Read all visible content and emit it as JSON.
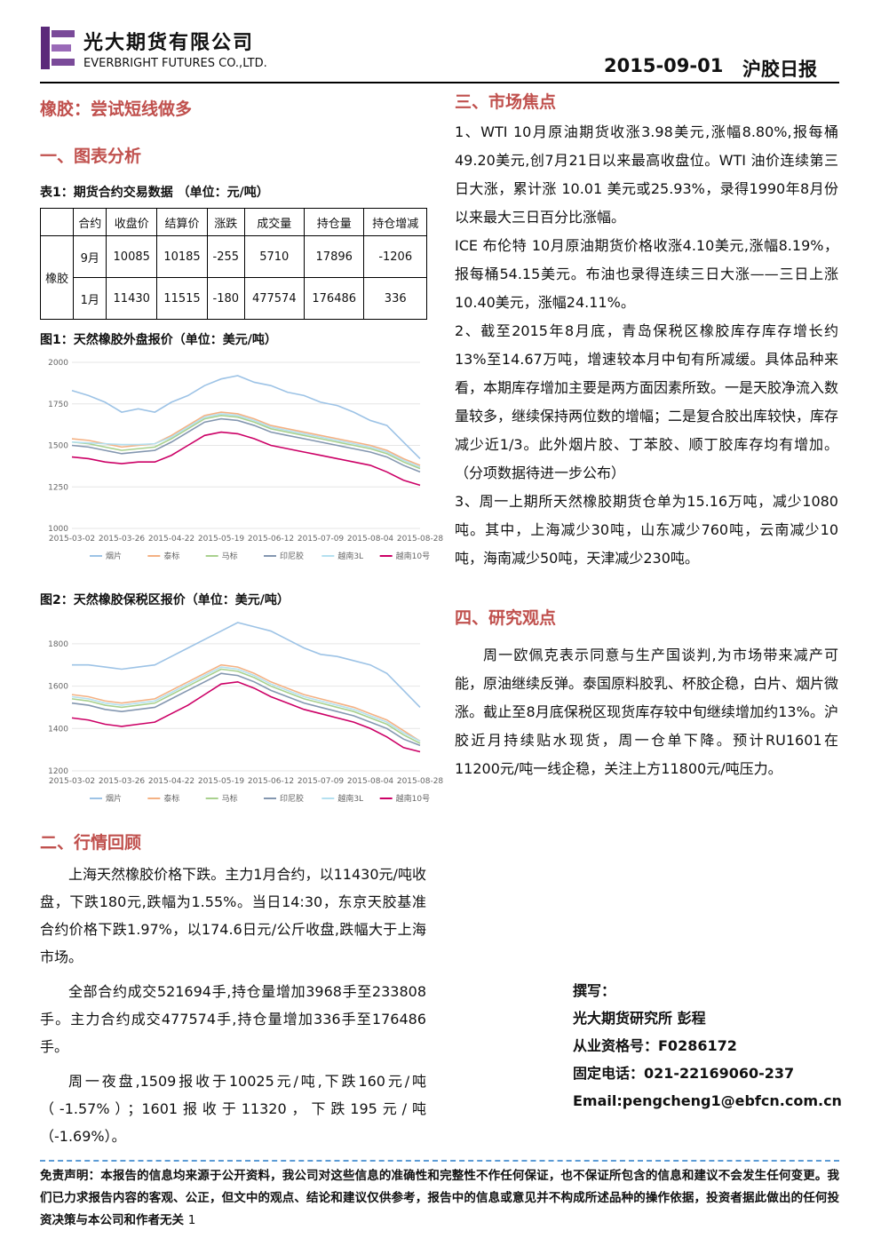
{
  "header": {
    "company_cn": "光大期货有限公司",
    "company_en": "EVERBRIGHT FUTURES CO.,LTD.",
    "date": "2015-09-01",
    "report_name": "沪胶日报"
  },
  "left": {
    "title": "橡胶：尝试短线做多",
    "section1": "一、图表分析",
    "table_caption": "表1：期货合约交易数据 （单位：元/吨）",
    "table": {
      "headers": [
        "合约",
        "收盘价",
        "结算价",
        "涨跌",
        "成交量",
        "持仓量",
        "持仓增减"
      ],
      "group": "橡胶",
      "rows": [
        [
          "9月",
          10085,
          10185,
          -255,
          5710,
          17896,
          -1206
        ],
        [
          "1月",
          11430,
          11515,
          -180,
          477574,
          176486,
          336
        ]
      ]
    },
    "fig1_caption": "图1：天然橡胶外盘报价（单位：美元/吨）",
    "fig2_caption": "图2：天然橡胶保税区报价（单位：美元/吨）",
    "section2": "二、行情回顾",
    "review": [
      "上海天然橡胶价格下跌。主力1月合约，以11430元/吨收盘，下跌180元,跌幅为1.55%。当日14:30，东京天胶基准合约价格下跌1.97%，以174.6日元/公斤收盘,跌幅大于上海市场。",
      "全部合约成交521694手,持仓量增加3968手至233808手。主力合约成交477574手,持仓量增加336手至176486手。",
      "周一夜盘,1509报收于10025元/吨,下跌160元/吨（-1.57%）；1601报收于11320，下跌195元/吨（-1.69%）。"
    ]
  },
  "right": {
    "section3": "三、市场焦点",
    "focus": [
      "1、WTI 10月原油期货收涨3.98美元,涨幅8.80%,报每桶49.20美元,创7月21日以来最高收盘位。WTI 油价连续第三日大涨，累计涨 10.01 美元或25.93%，录得1990年8月份以来最大三日百分比涨幅。",
      "ICE 布伦特 10月原油期货价格收涨4.10美元,涨幅8.19%，报每桶54.15美元。布油也录得连续三日大涨——三日上涨10.40美元，涨幅24.11%。",
      "2、截至2015年8月底，青岛保税区橡胶库存库存增长约13%至14.67万吨，增速较本月中旬有所减缓。具体品种来看，本期库存增加主要是两方面因素所致。一是天胶净流入数量较多，继续保持两位数的增幅；二是复合胶出库较快，库存减少近1/3。此外烟片胶、丁苯胶、顺丁胶库存均有增加。（分项数据待进一步公布）",
      "3、周一上期所天然橡胶期货仓单为15.16万吨，减少1080吨。其中，上海减少30吨，山东减少760吨，云南减少10吨，海南减少50吨，天津减少230吨。"
    ],
    "section4": "四、研究观点",
    "view": "周一欧佩克表示同意与生产国谈判,为市场带来减产可能，原油继续反弹。泰国原料胶乳、杯胶企稳，白片、烟片微涨。截止至8月底保税区现货库存较中旬继续增加约13%。沪胶近月持续贴水现货，周一仓单下降。预计RU1601在11200元/吨一线企稳，关注上方11800元/吨压力。",
    "author": [
      "撰写：",
      "光大期货研究所 彭程",
      "从业资格号：F0286172",
      "固定电话：021-22169060-237",
      "Email:pengcheng1@ebfcn.com.cn"
    ]
  },
  "footer": {
    "disclaimer": "免责声明：本报告的信息均来源于公开资料，我公司对这些信息的准确性和完整性不作任何保证，也不保证所包含的信息和建议不会发生任何变更。我们已力求报告内容的客观、公正，但文中的观点、结论和建议仅供参考，报告中的信息或意见并不构成所述品种的操作依据，投资者据此做出的任何投资决策与本公司和作者无关",
    "page": "1"
  },
  "chart_data": [
    {
      "type": "line",
      "categories": [
        "2015-03-02",
        null,
        null,
        "2015-03-26",
        null,
        null,
        "2015-04-22",
        null,
        null,
        "2015-05-19",
        null,
        null,
        "2015-06-12",
        null,
        null,
        "2015-07-09",
        null,
        null,
        "2015-08-04",
        null,
        null,
        "2015-08-28"
      ],
      "ylim": [
        1000,
        2000
      ],
      "yticks": [
        1000,
        1250,
        1500,
        1750,
        2000
      ],
      "series": [
        {
          "name": "烟片",
          "color": "#9dc3e6",
          "values": [
            1830,
            1800,
            1760,
            1700,
            1720,
            1700,
            1760,
            1800,
            1860,
            1900,
            1920,
            1880,
            1860,
            1820,
            1800,
            1760,
            1740,
            1700,
            1650,
            1620,
            1520,
            1420
          ]
        },
        {
          "name": "泰标",
          "color": "#f4b183",
          "values": [
            1540,
            1530,
            1510,
            1490,
            1500,
            1510,
            1560,
            1620,
            1680,
            1700,
            1690,
            1660,
            1620,
            1600,
            1580,
            1560,
            1540,
            1520,
            1500,
            1470,
            1420,
            1380
          ]
        },
        {
          "name": "马标",
          "color": "#a9d18e",
          "values": [
            1520,
            1510,
            1490,
            1470,
            1480,
            1490,
            1540,
            1600,
            1660,
            1680,
            1670,
            1640,
            1600,
            1580,
            1560,
            1540,
            1520,
            1500,
            1480,
            1450,
            1400,
            1360
          ]
        },
        {
          "name": "印尼胶",
          "color": "#8497b0",
          "values": [
            1500,
            1490,
            1470,
            1450,
            1460,
            1470,
            1520,
            1580,
            1640,
            1660,
            1650,
            1620,
            1580,
            1560,
            1540,
            1520,
            1500,
            1480,
            1460,
            1430,
            1380,
            1340
          ]
        },
        {
          "name": "越南3L",
          "color": "#b4e0f0",
          "values": [
            1520,
            1515,
            1510,
            1505,
            1505,
            1510,
            1550,
            1610,
            1670,
            1690,
            1680,
            1650,
            1610,
            1590,
            1570,
            1550,
            1530,
            1510,
            1490,
            1460,
            1410,
            1370
          ]
        },
        {
          "name": "越南10号",
          "color": "#cc0066",
          "values": [
            1430,
            1420,
            1400,
            1390,
            1400,
            1400,
            1440,
            1500,
            1560,
            1580,
            1570,
            1540,
            1500,
            1480,
            1460,
            1440,
            1420,
            1400,
            1380,
            1340,
            1290,
            1260
          ]
        }
      ]
    },
    {
      "type": "line",
      "categories": [
        "2015-03-02",
        null,
        null,
        "2015-03-26",
        null,
        null,
        "2015-04-22",
        null,
        null,
        "2015-05-19",
        null,
        null,
        "2015-06-12",
        null,
        null,
        "2015-07-09",
        null,
        null,
        "2015-08-04",
        null,
        null,
        "2015-08-28"
      ],
      "ylim": [
        1200,
        1900
      ],
      "yticks": [
        1200,
        1400,
        1600,
        1800
      ],
      "series": [
        {
          "name": "烟片",
          "color": "#9dc3e6",
          "values": [
            1700,
            1700,
            1690,
            1680,
            1690,
            1700,
            1740,
            1780,
            1820,
            1860,
            1900,
            1880,
            1860,
            1820,
            1780,
            1750,
            1740,
            1720,
            1700,
            1660,
            1580,
            1500
          ]
        },
        {
          "name": "泰标",
          "color": "#f4b183",
          "values": [
            1560,
            1550,
            1530,
            1520,
            1530,
            1540,
            1580,
            1620,
            1660,
            1700,
            1690,
            1660,
            1620,
            1590,
            1560,
            1540,
            1520,
            1500,
            1470,
            1440,
            1390,
            1340
          ]
        },
        {
          "name": "马标",
          "color": "#a9d18e",
          "values": [
            1540,
            1530,
            1510,
            1500,
            1510,
            1520,
            1560,
            1600,
            1640,
            1680,
            1670,
            1640,
            1600,
            1570,
            1540,
            1520,
            1500,
            1480,
            1450,
            1420,
            1370,
            1330
          ]
        },
        {
          "name": "印尼胶",
          "color": "#8497b0",
          "values": [
            1520,
            1510,
            1490,
            1480,
            1490,
            1500,
            1540,
            1580,
            1620,
            1660,
            1650,
            1620,
            1580,
            1550,
            1520,
            1500,
            1480,
            1460,
            1430,
            1400,
            1350,
            1320
          ]
        },
        {
          "name": "越南3L",
          "color": "#b4e0f0",
          "values": [
            1550,
            1540,
            1520,
            1510,
            1520,
            1530,
            1570,
            1610,
            1650,
            1690,
            1680,
            1650,
            1610,
            1580,
            1550,
            1530,
            1510,
            1490,
            1460,
            1430,
            1380,
            1340
          ]
        },
        {
          "name": "越南10号",
          "color": "#cc0066",
          "values": [
            1450,
            1440,
            1420,
            1410,
            1420,
            1430,
            1470,
            1510,
            1560,
            1610,
            1620,
            1590,
            1550,
            1520,
            1490,
            1470,
            1450,
            1430,
            1400,
            1360,
            1310,
            1290
          ]
        }
      ]
    }
  ]
}
